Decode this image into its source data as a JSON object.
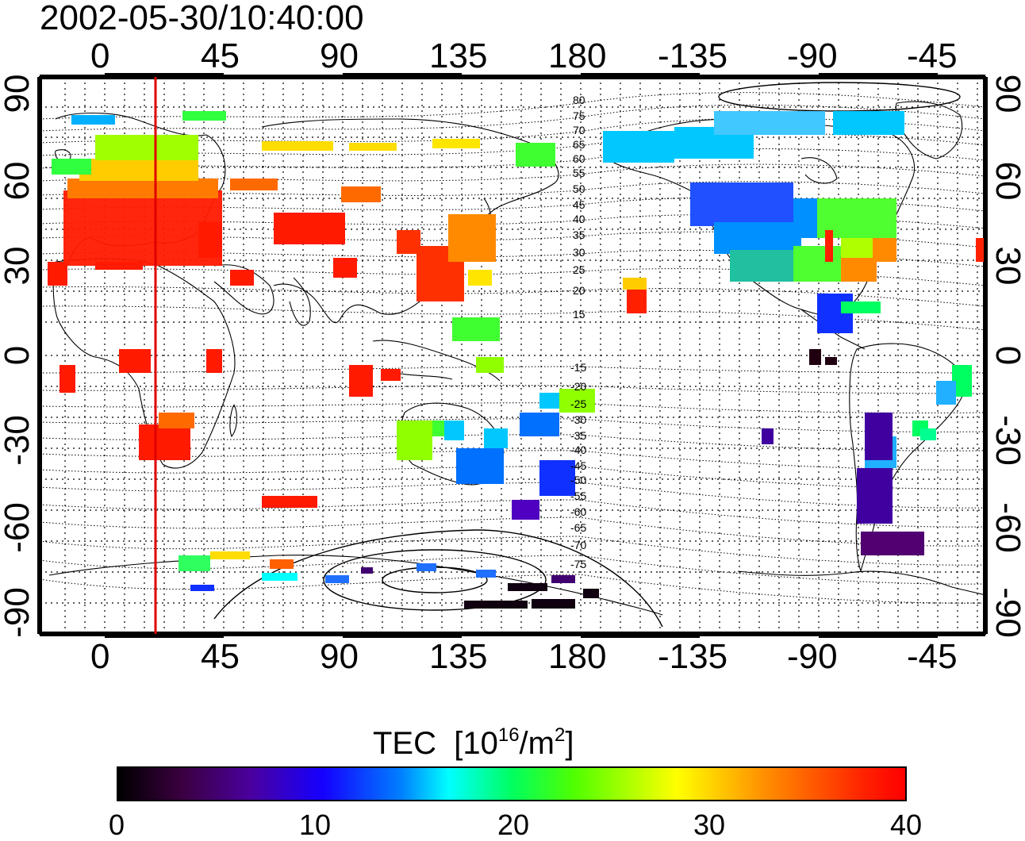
{
  "title": "2002-05-30/10:40:00",
  "lon_ticks_top": [
    "0",
    "45",
    "90",
    "135",
    "180",
    "-135",
    "-90",
    "-45"
  ],
  "lon_ticks_bottom": [
    "0",
    "45",
    "90",
    "135",
    "180",
    "-135",
    "-90",
    "-45"
  ],
  "lat_ticks_left": [
    "90",
    "60",
    "30",
    "0",
    "-30",
    "-60",
    "-90"
  ],
  "lat_ticks_right": [
    "90",
    "60",
    "30",
    "0",
    "-30",
    "-60",
    "-90"
  ],
  "contour_labels_north": [
    "80",
    "75",
    "70",
    "65",
    "60",
    "55",
    "50",
    "45",
    "40",
    "35",
    "30",
    "25",
    "20",
    "15"
  ],
  "contour_labels_south": [
    "-15",
    "-20",
    "-25",
    "-30",
    "-35",
    "-40",
    "-45",
    "-50",
    "-55",
    "-60",
    "-65",
    "-70",
    "-75"
  ],
  "colorbar": {
    "label": "TEC",
    "unit_prefix": "[10",
    "unit_exp": "16",
    "unit_mid": "/m",
    "unit_exp2": "2",
    "unit_suffix": "]",
    "ticks": [
      "0",
      "10",
      "20",
      "30",
      "40"
    ],
    "range": [
      0,
      40
    ]
  },
  "marker_line": {
    "color": "#e00000"
  }
}
